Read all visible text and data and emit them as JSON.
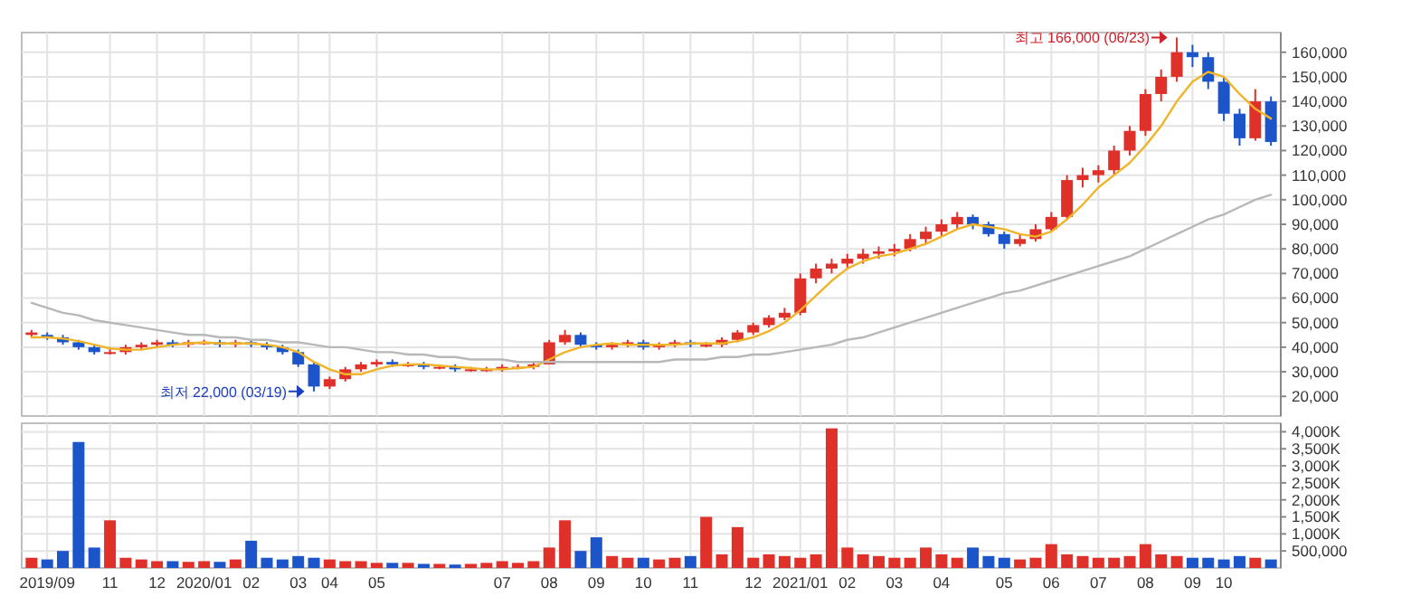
{
  "chart_data": [
    {
      "type": "candlestick",
      "categories": [
        null,
        "2019/09",
        null,
        null,
        null,
        "11",
        null,
        null,
        "12",
        null,
        null,
        "2020/01",
        null,
        null,
        "02",
        null,
        null,
        "03",
        null,
        "04",
        null,
        null,
        "05",
        null,
        null,
        null,
        null,
        null,
        null,
        null,
        "07",
        null,
        null,
        "08",
        null,
        null,
        "09",
        null,
        null,
        "10",
        null,
        null,
        "11",
        null,
        null,
        null,
        "12",
        null,
        null,
        "2021/01",
        null,
        null,
        "02",
        null,
        null,
        "03",
        null,
        null,
        "04",
        null,
        null,
        null,
        "05",
        null,
        null,
        "06",
        null,
        null,
        "07",
        null,
        null,
        "08",
        null,
        null,
        "09",
        null,
        "10",
        null,
        null,
        null
      ],
      "ohlc": [
        [
          46000,
          47000,
          44000,
          45000
        ],
        [
          45000,
          46000,
          43000,
          44000
        ],
        [
          44000,
          45000,
          41000,
          42000
        ],
        [
          42000,
          43000,
          39000,
          40000
        ],
        [
          40000,
          41000,
          37000,
          38000
        ],
        [
          38000,
          40000,
          37000,
          38000
        ],
        [
          38000,
          41000,
          37000,
          40000
        ],
        [
          40000,
          42000,
          39000,
          41000
        ],
        [
          41000,
          43000,
          40000,
          42000
        ],
        [
          42000,
          43000,
          40000,
          41000
        ],
        [
          41000,
          43000,
          40000,
          42000
        ],
        [
          42000,
          43000,
          41000,
          42000
        ],
        [
          42000,
          43000,
          40000,
          41000
        ],
        [
          41000,
          43000,
          40000,
          42000
        ],
        [
          42000,
          43000,
          40000,
          41000
        ],
        [
          41000,
          42000,
          39000,
          40000
        ],
        [
          40000,
          41000,
          37000,
          38000
        ],
        [
          38000,
          39000,
          32000,
          33000
        ],
        [
          33000,
          34000,
          22000,
          24000
        ],
        [
          24000,
          28000,
          23000,
          27000
        ],
        [
          27000,
          32000,
          26000,
          31000
        ],
        [
          31000,
          34000,
          30000,
          33000
        ],
        [
          33000,
          35000,
          32000,
          34000
        ],
        [
          34000,
          35000,
          32000,
          33000
        ],
        [
          33000,
          34000,
          32000,
          33000
        ],
        [
          33000,
          34000,
          31000,
          32000
        ],
        [
          32000,
          33000,
          31000,
          32000
        ],
        [
          32000,
          33000,
          30000,
          31000
        ],
        [
          31000,
          32000,
          30000,
          31000
        ],
        [
          31000,
          32000,
          30000,
          31000
        ],
        [
          31000,
          33000,
          30000,
          32000
        ],
        [
          32000,
          33000,
          31000,
          32000
        ],
        [
          32000,
          34000,
          31000,
          33000
        ],
        [
          33000,
          43000,
          33000,
          42000
        ],
        [
          42000,
          47000,
          41000,
          45000
        ],
        [
          45000,
          46000,
          40000,
          41000
        ],
        [
          41000,
          42000,
          39000,
          40000
        ],
        [
          40000,
          42000,
          39000,
          41000
        ],
        [
          41000,
          43000,
          40000,
          42000
        ],
        [
          42000,
          43000,
          39000,
          40000
        ],
        [
          40000,
          42000,
          39000,
          41000
        ],
        [
          41000,
          43000,
          40000,
          42000
        ],
        [
          42000,
          43000,
          40000,
          41000
        ],
        [
          41000,
          42000,
          40000,
          41000
        ],
        [
          41000,
          44000,
          40000,
          43000
        ],
        [
          43000,
          47000,
          42000,
          46000
        ],
        [
          46000,
          50000,
          45000,
          49000
        ],
        [
          49000,
          53000,
          48000,
          52000
        ],
        [
          52000,
          56000,
          51000,
          54000
        ],
        [
          54000,
          70000,
          53000,
          68000
        ],
        [
          68000,
          74000,
          66000,
          72000
        ],
        [
          72000,
          76000,
          70000,
          74000
        ],
        [
          74000,
          78000,
          72000,
          76000
        ],
        [
          76000,
          80000,
          74000,
          78000
        ],
        [
          78000,
          81000,
          76000,
          79000
        ],
        [
          79000,
          82000,
          77000,
          80000
        ],
        [
          80000,
          86000,
          79000,
          84000
        ],
        [
          84000,
          89000,
          82000,
          87000
        ],
        [
          87000,
          92000,
          85000,
          90000
        ],
        [
          90000,
          95000,
          88000,
          93000
        ],
        [
          93000,
          94000,
          88000,
          90000
        ],
        [
          90000,
          91000,
          85000,
          86000
        ],
        [
          86000,
          87000,
          80000,
          82000
        ],
        [
          82000,
          86000,
          81000,
          84000
        ],
        [
          84000,
          90000,
          83000,
          88000
        ],
        [
          88000,
          95000,
          87000,
          93000
        ],
        [
          93000,
          110000,
          92000,
          108000
        ],
        [
          108000,
          113000,
          105000,
          110000
        ],
        [
          110000,
          114000,
          107000,
          112000
        ],
        [
          112000,
          122000,
          110000,
          120000
        ],
        [
          120000,
          130000,
          118000,
          128000
        ],
        [
          128000,
          145000,
          126000,
          143000
        ],
        [
          143000,
          153000,
          140000,
          150000
        ],
        [
          150000,
          166000,
          148000,
          160000
        ],
        [
          160000,
          163000,
          154000,
          158000
        ],
        [
          158000,
          160000,
          145000,
          148000
        ],
        [
          148000,
          150000,
          132000,
          135000
        ],
        [
          135000,
          137000,
          122000,
          125000
        ],
        [
          125000,
          145000,
          124000,
          140000
        ],
        [
          140000,
          142000,
          122000,
          123500
        ]
      ],
      "colors": [
        "#e0302a",
        "#1c55c9",
        "#1c55c9",
        "#1c55c9",
        "#1c55c9",
        "#e0302a",
        "#e0302a",
        "#e0302a",
        "#e0302a",
        "#1c55c9",
        "#e0302a",
        "#e0302a",
        "#1c55c9",
        "#e0302a",
        "#1c55c9",
        "#1c55c9",
        "#1c55c9",
        "#1c55c9",
        "#1c55c9",
        "#e0302a",
        "#e0302a",
        "#e0302a",
        "#e0302a",
        "#1c55c9",
        "#e0302a",
        "#1c55c9",
        "#e0302a",
        "#1c55c9",
        "#e0302a",
        "#e0302a",
        "#e0302a",
        "#e0302a",
        "#e0302a",
        "#e0302a",
        "#e0302a",
        "#1c55c9",
        "#1c55c9",
        "#e0302a",
        "#e0302a",
        "#1c55c9",
        "#e0302a",
        "#e0302a",
        "#1c55c9",
        "#e0302a",
        "#e0302a",
        "#e0302a",
        "#e0302a",
        "#e0302a",
        "#e0302a",
        "#e0302a",
        "#e0302a",
        "#e0302a",
        "#e0302a",
        "#e0302a",
        "#e0302a",
        "#e0302a",
        "#e0302a",
        "#e0302a",
        "#e0302a",
        "#e0302a",
        "#1c55c9",
        "#1c55c9",
        "#1c55c9",
        "#e0302a",
        "#e0302a",
        "#e0302a",
        "#e0302a",
        "#e0302a",
        "#e0302a",
        "#e0302a",
        "#e0302a",
        "#e0302a",
        "#e0302a",
        "#e0302a",
        "#1c55c9",
        "#1c55c9",
        "#1c55c9",
        "#1c55c9",
        "#e0302a",
        "#1c55c9"
      ],
      "series": [
        {
          "type": "line",
          "color": "#f0b429",
          "values": [
            44000,
            44000,
            43500,
            42500,
            41000,
            39500,
            39000,
            39000,
            40000,
            41000,
            41500,
            42000,
            41500,
            41500,
            41500,
            41000,
            40000,
            38000,
            34000,
            31000,
            29000,
            29000,
            31000,
            32500,
            33000,
            33000,
            32500,
            32000,
            31500,
            31000,
            31000,
            31500,
            32000,
            35000,
            38000,
            40000,
            41000,
            41500,
            41000,
            41000,
            41000,
            41000,
            41500,
            41500,
            41500,
            42500,
            44000,
            46500,
            50000,
            55000,
            61000,
            67000,
            72000,
            75000,
            77000,
            78000,
            80000,
            82000,
            85000,
            88000,
            90000,
            89000,
            88000,
            86000,
            85000,
            87000,
            92000,
            98000,
            105000,
            110000,
            115000,
            122000,
            130000,
            140000,
            148000,
            152000,
            150000,
            143000,
            137000,
            133000
          ]
        },
        {
          "type": "line",
          "color": "#b8b8b8",
          "values": [
            58000,
            56000,
            54000,
            53000,
            51000,
            50000,
            49000,
            48000,
            47000,
            46000,
            45000,
            45000,
            44000,
            44000,
            43000,
            43000,
            42000,
            42000,
            41000,
            40000,
            40000,
            39000,
            38000,
            38000,
            37000,
            37000,
            36000,
            36000,
            35000,
            35000,
            35000,
            34000,
            34000,
            34000,
            34000,
            34000,
            34000,
            34000,
            34000,
            34000,
            34000,
            35000,
            35000,
            35000,
            36000,
            36000,
            37000,
            37000,
            38000,
            39000,
            40000,
            41000,
            43000,
            44000,
            46000,
            48000,
            50000,
            52000,
            54000,
            56000,
            58000,
            60000,
            62000,
            63000,
            65000,
            67000,
            69000,
            71000,
            73000,
            75000,
            77000,
            80000,
            83000,
            86000,
            89000,
            92000,
            94000,
            97000,
            100000,
            102000
          ]
        }
      ],
      "ylim": [
        12000,
        168000
      ],
      "yticks": [
        {
          "value": 20000,
          "label": "20,000"
        },
        {
          "value": 30000,
          "label": "30,000"
        },
        {
          "value": 40000,
          "label": "40,000"
        },
        {
          "value": 50000,
          "label": "50,000"
        },
        {
          "value": 60000,
          "label": "60,000"
        },
        {
          "value": 70000,
          "label": "70,000"
        },
        {
          "value": 80000,
          "label": "80,000"
        },
        {
          "value": 90000,
          "label": "90,000"
        },
        {
          "value": 100000,
          "label": "100,000"
        },
        {
          "value": 110000,
          "label": "110,000"
        },
        {
          "value": 120000,
          "label": "120,000"
        },
        {
          "value": 130000,
          "label": "130,000"
        },
        {
          "value": 140000,
          "label": "140,000"
        },
        {
          "value": 150000,
          "label": "150,000"
        },
        {
          "value": 160000,
          "label": "160,000"
        }
      ],
      "annotations": [
        "최저 22,000 (03/19)",
        "최고 166,000 (06/23)"
      ],
      "grid": true,
      "tick_labels": "y"
    },
    {
      "type": "bar",
      "categories": [
        null,
        "2019/09",
        null,
        null,
        null,
        "11",
        null,
        null,
        "12",
        null,
        null,
        "2020/01",
        null,
        null,
        "02",
        null,
        null,
        "03",
        null,
        "04",
        null,
        null,
        "05",
        null,
        null,
        null,
        null,
        null,
        null,
        null,
        "07",
        null,
        null,
        "08",
        null,
        null,
        "09",
        null,
        null,
        "10",
        null,
        null,
        "11",
        null,
        null,
        null,
        "12",
        null,
        null,
        "2021/01",
        null,
        null,
        "02",
        null,
        null,
        "03",
        null,
        null,
        "04",
        null,
        null,
        null,
        "05",
        null,
        null,
        "06",
        null,
        null,
        "07",
        null,
        null,
        "08",
        null,
        null,
        "09",
        null,
        "10",
        null,
        null,
        null
      ],
      "values": [
        300000,
        250000,
        500000,
        3700000,
        600000,
        1400000,
        300000,
        250000,
        200000,
        200000,
        180000,
        200000,
        180000,
        250000,
        800000,
        300000,
        250000,
        350000,
        300000,
        250000,
        200000,
        200000,
        150000,
        150000,
        150000,
        120000,
        120000,
        100000,
        120000,
        150000,
        200000,
        150000,
        200000,
        600000,
        1400000,
        500000,
        900000,
        350000,
        300000,
        300000,
        250000,
        300000,
        350000,
        1500000,
        400000,
        1200000,
        300000,
        400000,
        350000,
        300000,
        400000,
        4100000,
        600000,
        400000,
        350000,
        300000,
        300000,
        600000,
        400000,
        300000,
        600000,
        350000,
        300000,
        250000,
        300000,
        700000,
        400000,
        350000,
        300000,
        300000,
        350000,
        700000,
        400000,
        350000,
        300000,
        300000,
        250000,
        350000,
        300000,
        250000
      ],
      "colors": [
        "#e0302a",
        "#1c55c9",
        "#1c55c9",
        "#1c55c9",
        "#1c55c9",
        "#e0302a",
        "#e0302a",
        "#e0302a",
        "#e0302a",
        "#1c55c9",
        "#e0302a",
        "#e0302a",
        "#1c55c9",
        "#e0302a",
        "#1c55c9",
        "#1c55c9",
        "#1c55c9",
        "#1c55c9",
        "#1c55c9",
        "#e0302a",
        "#e0302a",
        "#e0302a",
        "#e0302a",
        "#1c55c9",
        "#e0302a",
        "#1c55c9",
        "#e0302a",
        "#1c55c9",
        "#e0302a",
        "#e0302a",
        "#e0302a",
        "#e0302a",
        "#e0302a",
        "#e0302a",
        "#e0302a",
        "#1c55c9",
        "#1c55c9",
        "#e0302a",
        "#e0302a",
        "#1c55c9",
        "#e0302a",
        "#e0302a",
        "#1c55c9",
        "#e0302a",
        "#e0302a",
        "#e0302a",
        "#e0302a",
        "#e0302a",
        "#e0302a",
        "#e0302a",
        "#e0302a",
        "#e0302a",
        "#e0302a",
        "#e0302a",
        "#e0302a",
        "#e0302a",
        "#e0302a",
        "#e0302a",
        "#e0302a",
        "#e0302a",
        "#1c55c9",
        "#1c55c9",
        "#1c55c9",
        "#e0302a",
        "#e0302a",
        "#e0302a",
        "#e0302a",
        "#e0302a",
        "#e0302a",
        "#e0302a",
        "#e0302a",
        "#e0302a",
        "#e0302a",
        "#e0302a",
        "#1c55c9",
        "#1c55c9",
        "#1c55c9",
        "#1c55c9",
        "#e0302a",
        "#1c55c9"
      ],
      "ylim": [
        0,
        4250000
      ],
      "yticks": [
        {
          "value": 500000,
          "label": "500,000"
        },
        {
          "value": 1000000,
          "label": "1,000K"
        },
        {
          "value": 1500000,
          "label": "1,500K"
        },
        {
          "value": 2000000,
          "label": "2,000K"
        },
        {
          "value": 2500000,
          "label": "2,500K"
        },
        {
          "value": 3000000,
          "label": "3,000K"
        },
        {
          "value": 3500000,
          "label": "3,500K"
        },
        {
          "value": 4000000,
          "label": "4,000K"
        }
      ],
      "grid": true
    }
  ]
}
